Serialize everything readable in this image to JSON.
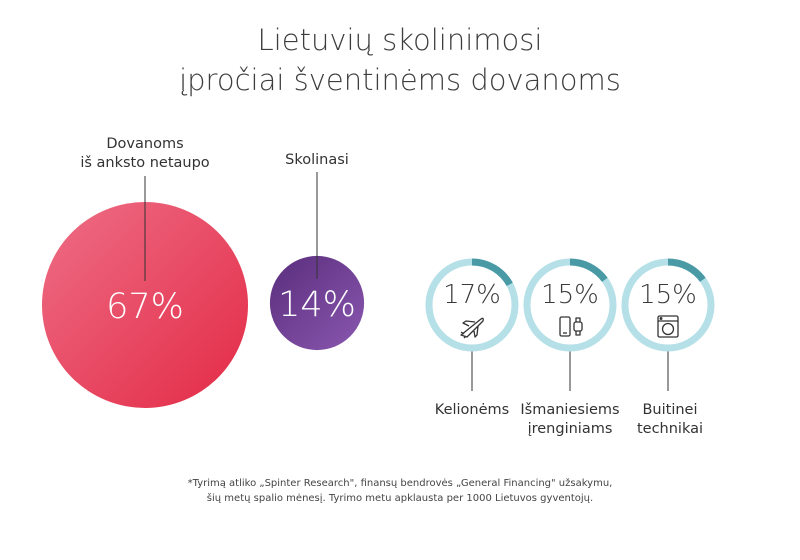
{
  "title": {
    "line1": "Lietuvių skolinimosi",
    "line2": "įpročiai šventinėms dovanoms"
  },
  "chart_data": {
    "type": "bubble",
    "colors": {
      "no_savings": "#e5334f",
      "borrows": "#6a3b8e",
      "ring_track": "#b5e0e8",
      "ring_fill": "#4a9aa5"
    },
    "main": [
      {
        "label_lines": [
          "Dovanoms",
          "iš anksto netaupo"
        ],
        "value": 67,
        "display": "67%"
      },
      {
        "label_lines": [
          "Skolinasi"
        ],
        "value": 14,
        "display": "14%"
      }
    ],
    "breakdown": [
      {
        "label_lines": [
          "Kelionėms"
        ],
        "value": 17,
        "display": "17%",
        "icon": "airplane-icon"
      },
      {
        "label_lines": [
          "Išmaniesiems",
          "įrenginiams"
        ],
        "value": 15,
        "display": "15%",
        "icon": "smartphone-watch-icon"
      },
      {
        "label_lines": [
          "Buitinei",
          "technikai"
        ],
        "value": 15,
        "display": "15%",
        "icon": "washing-machine-icon"
      }
    ]
  },
  "footnote": {
    "line1": "*Tyrimą atliko „Spinter Research\", finansų bendrovės „General Financing\" užsakymu,",
    "line2": "šių metų spalio mėnesį. Tyrimo metu apklausta per 1000 Lietuvos gyventojų."
  }
}
